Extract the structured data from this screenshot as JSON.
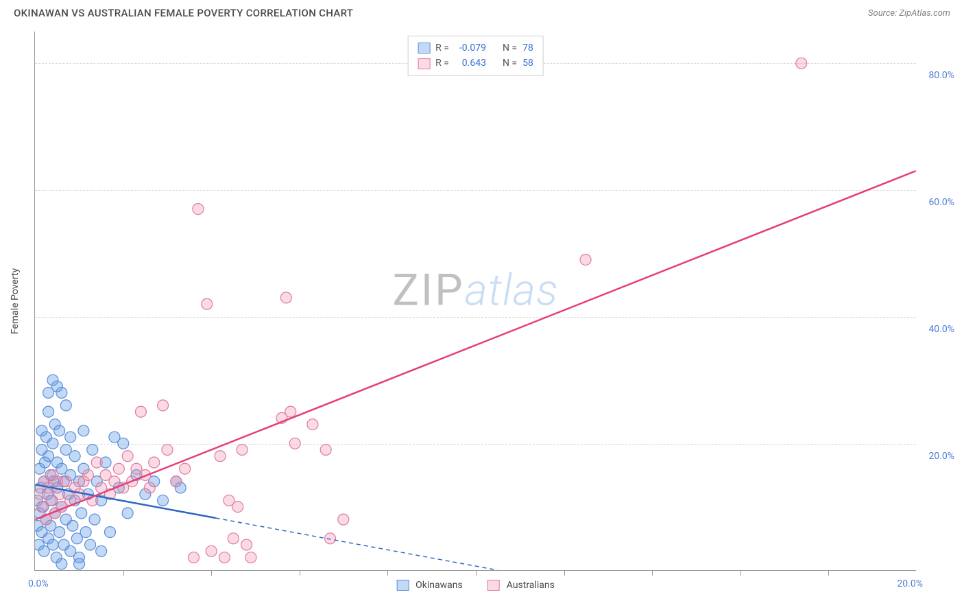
{
  "header": {
    "title": "OKINAWAN VS AUSTRALIAN FEMALE POVERTY CORRELATION CHART",
    "source": "Source: ZipAtlas.com"
  },
  "chart": {
    "type": "scatter",
    "y_axis_title": "Female Poverty",
    "background_color": "#ffffff",
    "grid_color": "#d8d8d8",
    "axis_color": "#9a9a9a",
    "xlim": [
      0,
      20
    ],
    "ylim": [
      0,
      85
    ],
    "x_tick_step": 2,
    "x_labels": {
      "start": "0.0%",
      "end": "20.0%"
    },
    "y_ticks": [
      {
        "value": 20,
        "label": "20.0%"
      },
      {
        "value": 40,
        "label": "40.0%"
      },
      {
        "value": 60,
        "label": "60.0%"
      },
      {
        "value": 80,
        "label": "80.0%"
      }
    ],
    "watermark": {
      "part1": "ZIP",
      "part2": "atlas"
    },
    "series": [
      {
        "id": "okinawans",
        "label": "Okinawans",
        "fill_color": "rgba(100,155,230,0.38)",
        "stroke_color": "#5a8fd8",
        "line_color": "#2d68c4",
        "marker_radius": 8,
        "R": "-0.079",
        "N": "78",
        "trend": {
          "x1": 0,
          "y1": 13.5,
          "x2": 10.5,
          "y2": 0,
          "dash_from_x": 4.1
        },
        "points": [
          [
            0.05,
            7
          ],
          [
            0.05,
            11
          ],
          [
            0.08,
            4
          ],
          [
            0.1,
            9
          ],
          [
            0.1,
            16
          ],
          [
            0.12,
            13
          ],
          [
            0.15,
            6
          ],
          [
            0.15,
            19
          ],
          [
            0.15,
            22
          ],
          [
            0.18,
            10
          ],
          [
            0.2,
            3
          ],
          [
            0.2,
            14
          ],
          [
            0.22,
            17
          ],
          [
            0.25,
            8
          ],
          [
            0.25,
            21
          ],
          [
            0.28,
            12
          ],
          [
            0.3,
            5
          ],
          [
            0.3,
            18
          ],
          [
            0.3,
            25
          ],
          [
            0.3,
            28
          ],
          [
            0.35,
            7
          ],
          [
            0.35,
            15
          ],
          [
            0.38,
            11
          ],
          [
            0.4,
            4
          ],
          [
            0.4,
            20
          ],
          [
            0.4,
            30
          ],
          [
            0.42,
            14
          ],
          [
            0.45,
            9
          ],
          [
            0.45,
            23
          ],
          [
            0.48,
            2
          ],
          [
            0.5,
            13
          ],
          [
            0.5,
            17
          ],
          [
            0.5,
            29
          ],
          [
            0.55,
            6
          ],
          [
            0.55,
            22
          ],
          [
            0.6,
            10
          ],
          [
            0.6,
            16
          ],
          [
            0.6,
            28
          ],
          [
            0.65,
            4
          ],
          [
            0.65,
            14
          ],
          [
            0.7,
            8
          ],
          [
            0.7,
            19
          ],
          [
            0.7,
            26
          ],
          [
            0.75,
            12
          ],
          [
            0.8,
            3
          ],
          [
            0.8,
            15
          ],
          [
            0.8,
            21
          ],
          [
            0.85,
            7
          ],
          [
            0.9,
            11
          ],
          [
            0.9,
            18
          ],
          [
            0.95,
            5
          ],
          [
            1.0,
            14
          ],
          [
            1.0,
            2
          ],
          [
            1.05,
            9
          ],
          [
            1.1,
            16
          ],
          [
            1.1,
            22
          ],
          [
            1.15,
            6
          ],
          [
            1.2,
            12
          ],
          [
            1.25,
            4
          ],
          [
            1.3,
            19
          ],
          [
            1.35,
            8
          ],
          [
            1.4,
            14
          ],
          [
            1.5,
            3
          ],
          [
            1.5,
            11
          ],
          [
            1.6,
            17
          ],
          [
            1.7,
            6
          ],
          [
            1.8,
            21
          ],
          [
            1.9,
            13
          ],
          [
            2.0,
            20
          ],
          [
            2.1,
            9
          ],
          [
            2.3,
            15
          ],
          [
            2.5,
            12
          ],
          [
            2.7,
            14
          ],
          [
            2.9,
            11
          ],
          [
            3.2,
            14
          ],
          [
            3.3,
            13
          ],
          [
            1.0,
            1
          ],
          [
            0.6,
            1
          ]
        ]
      },
      {
        "id": "australians",
        "label": "Australians",
        "fill_color": "rgba(240,140,170,0.32)",
        "stroke_color": "#e27a9a",
        "line_color": "#e63e7a",
        "marker_radius": 8,
        "R": "0.643",
        "N": "58",
        "trend": {
          "x1": 0,
          "y1": 8,
          "x2": 20,
          "y2": 63,
          "dash_from_x": null
        },
        "points": [
          [
            0.1,
            12
          ],
          [
            0.15,
            10
          ],
          [
            0.2,
            14
          ],
          [
            0.25,
            8
          ],
          [
            0.3,
            13
          ],
          [
            0.35,
            11
          ],
          [
            0.4,
            15
          ],
          [
            0.45,
            9
          ],
          [
            0.5,
            14
          ],
          [
            0.55,
            12
          ],
          [
            0.6,
            10
          ],
          [
            0.7,
            14
          ],
          [
            0.8,
            11
          ],
          [
            0.9,
            13
          ],
          [
            1.0,
            12
          ],
          [
            1.1,
            14
          ],
          [
            1.2,
            15
          ],
          [
            1.3,
            11
          ],
          [
            1.4,
            17
          ],
          [
            1.5,
            13
          ],
          [
            1.6,
            15
          ],
          [
            1.7,
            12
          ],
          [
            1.8,
            14
          ],
          [
            1.9,
            16
          ],
          [
            2.0,
            13
          ],
          [
            2.1,
            18
          ],
          [
            2.2,
            14
          ],
          [
            2.3,
            16
          ],
          [
            2.4,
            25
          ],
          [
            2.5,
            15
          ],
          [
            2.6,
            13
          ],
          [
            2.7,
            17
          ],
          [
            2.9,
            26
          ],
          [
            3.0,
            19
          ],
          [
            3.2,
            14
          ],
          [
            3.4,
            16
          ],
          [
            3.6,
            2
          ],
          [
            3.7,
            57
          ],
          [
            3.9,
            42
          ],
          [
            4.0,
            3
          ],
          [
            4.2,
            18
          ],
          [
            4.3,
            2
          ],
          [
            4.5,
            5
          ],
          [
            4.6,
            10
          ],
          [
            4.7,
            19
          ],
          [
            4.8,
            4
          ],
          [
            4.9,
            2
          ],
          [
            5.6,
            24
          ],
          [
            5.8,
            25
          ],
          [
            5.7,
            43
          ],
          [
            5.9,
            20
          ],
          [
            6.3,
            23
          ],
          [
            6.6,
            19
          ],
          [
            6.7,
            5
          ],
          [
            7.0,
            8
          ],
          [
            12.5,
            49
          ],
          [
            17.4,
            80
          ],
          [
            4.4,
            11
          ]
        ]
      }
    ],
    "legend_labels": {
      "R": "R =",
      "N": "N ="
    }
  }
}
